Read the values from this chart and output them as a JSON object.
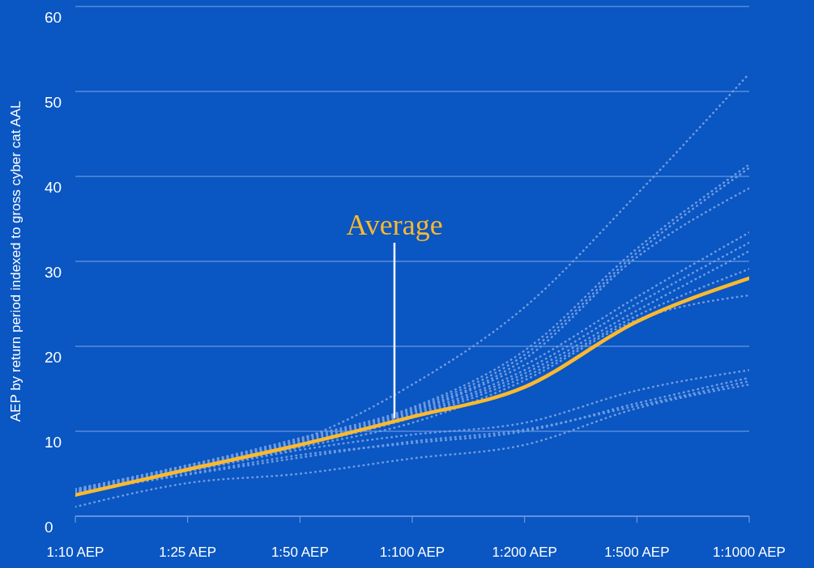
{
  "chart_data": {
    "type": "line",
    "ylabel": "AEP by return period indexed to gross cyber cat AAL",
    "categories": [
      "1:10 AEP",
      "1:25 AEP",
      "1:50 AEP",
      "1:100 AEP",
      "1:200 AEP",
      "1:500 AEP",
      "1:1000 AEP"
    ],
    "ylim": [
      0,
      60
    ],
    "yticks": [
      0,
      10,
      20,
      30,
      40,
      50,
      60
    ],
    "grid": "y",
    "line_style": "dotted",
    "marker": "none",
    "series": [
      {
        "color": "#6f9be0",
        "values": [
          3.2,
          6.0,
          9.0,
          15.5,
          24.6,
          37.9,
          52.1
        ]
      },
      {
        "color": "#6f9be0",
        "values": [
          3.2,
          6.0,
          9.2,
          12.8,
          19.5,
          31.5,
          41.4
        ]
      },
      {
        "color": "#6f9be0",
        "values": [
          3.1,
          5.9,
          9.0,
          12.6,
          19.0,
          31.0,
          41.0
        ]
      },
      {
        "color": "#6f9be0",
        "values": [
          3.0,
          5.8,
          8.8,
          12.4,
          18.5,
          30.5,
          38.6
        ]
      },
      {
        "color": "#6f9be0",
        "values": [
          3.0,
          5.7,
          8.6,
          12.2,
          17.8,
          25.8,
          33.4
        ]
      },
      {
        "color": "#6f9be0",
        "values": [
          2.9,
          5.6,
          8.5,
          12.0,
          17.2,
          25.0,
          32.2
        ]
      },
      {
        "color": "#6f9be0",
        "values": [
          2.9,
          5.5,
          8.4,
          11.8,
          16.8,
          24.2,
          31.2
        ]
      },
      {
        "color": "#6f9be0",
        "values": [
          2.8,
          5.4,
          8.3,
          11.6,
          16.4,
          23.6,
          29.1
        ]
      },
      {
        "color": "#6f9be0",
        "values": [
          2.7,
          5.3,
          8.1,
          11.0,
          16.0,
          23.1,
          26.0
        ]
      },
      {
        "color": "#6f9be0",
        "values": [
          3.0,
          5.3,
          7.8,
          9.6,
          11.0,
          14.8,
          17.2
        ]
      },
      {
        "color": "#6f9be0",
        "values": [
          2.9,
          5.0,
          7.2,
          8.6,
          10.0,
          13.3,
          16.3
        ]
      },
      {
        "color": "#6f9be0",
        "values": [
          2.8,
          4.9,
          6.9,
          8.8,
          10.2,
          13.0,
          15.9
        ]
      },
      {
        "color": "#6f9be0",
        "values": [
          1.1,
          3.9,
          5.0,
          6.8,
          8.4,
          12.7,
          15.5
        ]
      },
      {
        "name": "Average",
        "color": "#fbb92e",
        "line_style": "solid",
        "values": [
          2.5,
          5.5,
          8.4,
          11.7,
          15.2,
          22.9,
          28.0
        ]
      }
    ]
  }
}
